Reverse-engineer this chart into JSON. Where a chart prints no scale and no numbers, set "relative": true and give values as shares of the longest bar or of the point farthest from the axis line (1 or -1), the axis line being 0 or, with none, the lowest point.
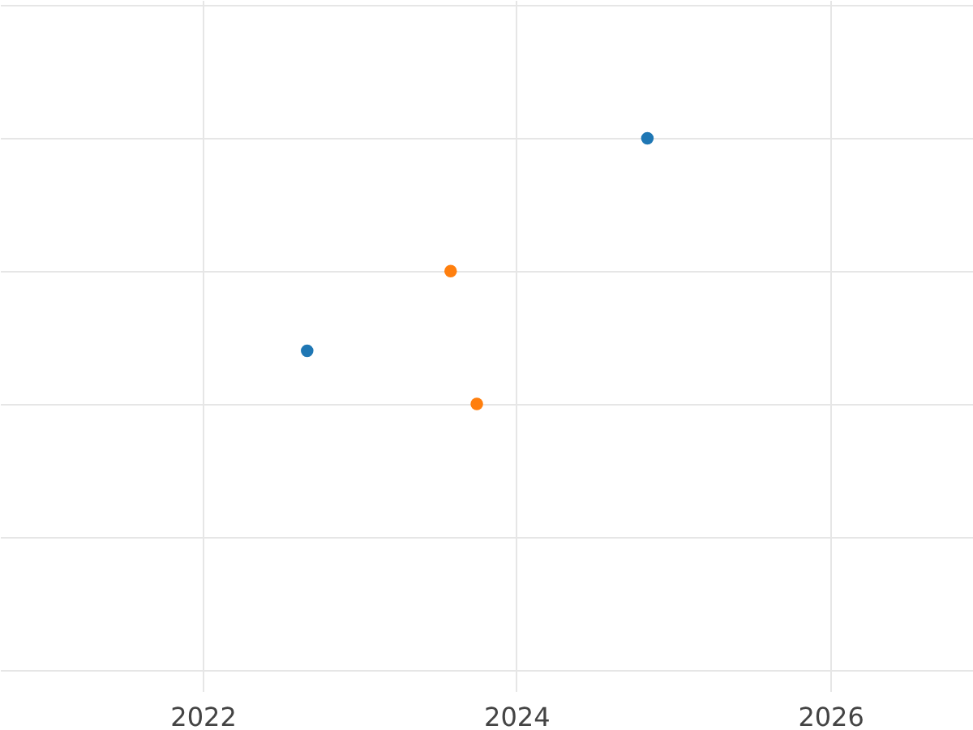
{
  "chart_data": {
    "type": "scatter",
    "relative": true,
    "grid": true,
    "legend": false,
    "marker": "circle",
    "tick_labels": "x",
    "xlim": [
      "2020-09-16",
      "2026-11-29"
    ],
    "xticks": [
      {
        "value": "2022",
        "label": "2022"
      },
      {
        "value": "2024",
        "label": "2024"
      },
      {
        "value": "2026",
        "label": "2026"
      }
    ],
    "series": [
      {
        "color": "#1f77b4",
        "x": [
          "2022-09",
          "2024-11"
        ],
        "values": [
          0.2,
          1
        ]
      },
      {
        "color": "#ff7f0e",
        "x": [
          "2023-08",
          "2023-10"
        ],
        "values": [
          0.5,
          0
        ]
      }
    ]
  }
}
